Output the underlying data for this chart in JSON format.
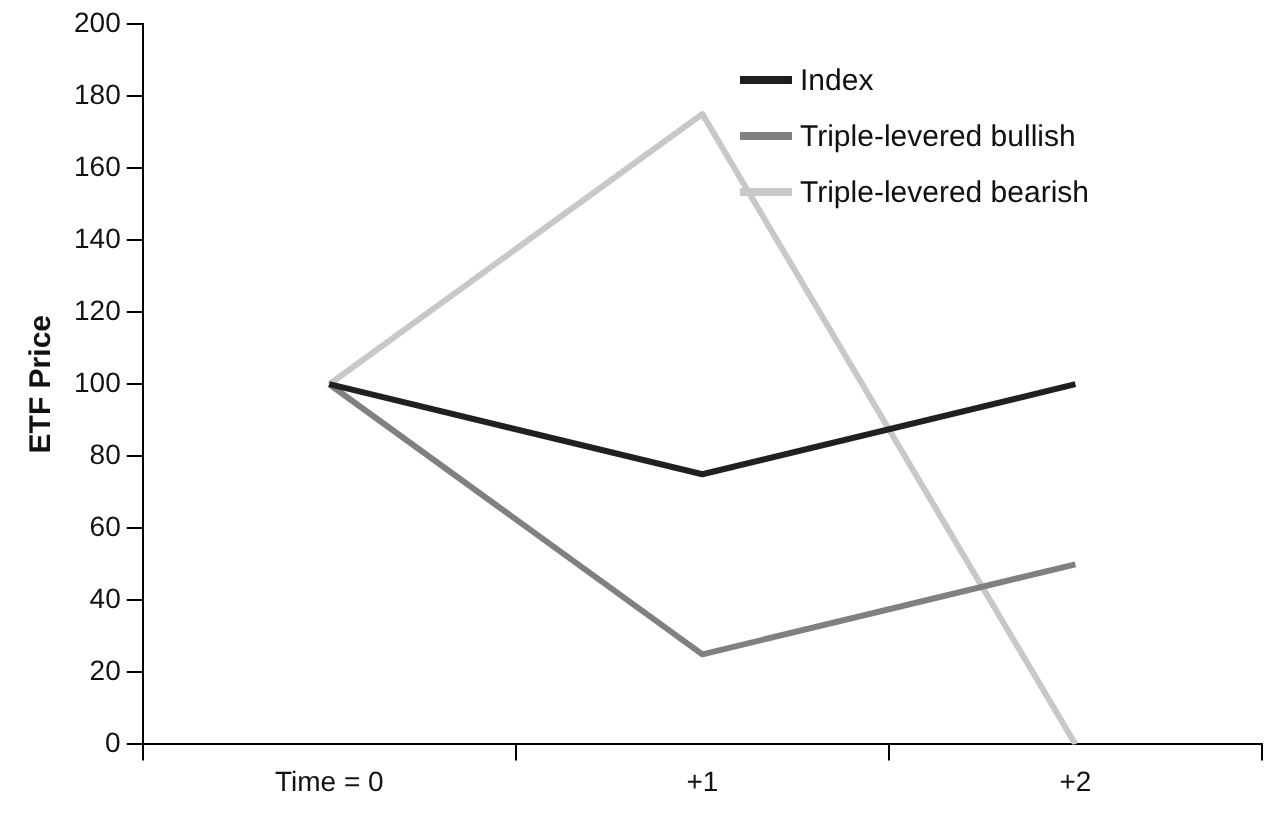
{
  "chart_data": {
    "type": "line",
    "ylabel": "ETF Price",
    "categories": [
      "Time = 0",
      "+1",
      "+2"
    ],
    "series": [
      {
        "name": "Index",
        "color": "#231f20",
        "values": [
          100,
          75,
          100
        ]
      },
      {
        "name": "Triple-levered bullish",
        "color": "#808080",
        "values": [
          100,
          25,
          50
        ]
      },
      {
        "name": "Triple-levered bearish",
        "color": "#c8c8c8",
        "values": [
          100,
          175,
          0
        ]
      }
    ],
    "ylim": [
      0,
      200
    ],
    "yticks": [
      0,
      20,
      40,
      60,
      80,
      100,
      120,
      140,
      160,
      180,
      200
    ],
    "grid": false,
    "legend": "top right",
    "marker": "none",
    "line_style": "solid"
  }
}
